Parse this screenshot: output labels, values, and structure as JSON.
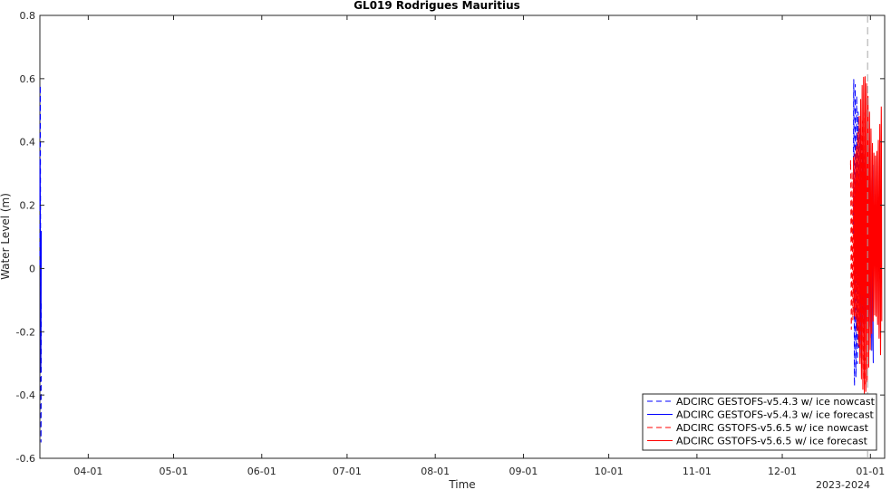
{
  "chart_data": {
    "type": "line",
    "title": "GL019 Rodrigues Mauritius",
    "xlabel": "Time",
    "ylabel": "Water Level (m)",
    "x_tick_labels": [
      "04-01",
      "05-01",
      "06-01",
      "07-01",
      "08-01",
      "09-01",
      "10-01",
      "11-01",
      "12-01",
      "01-01"
    ],
    "x_secondary_label": "2023-2024",
    "xlim": [
      "2023-03-15",
      "2024-01-06"
    ],
    "ylim": [
      -0.6,
      0.8
    ],
    "y_ticks": [
      -0.6,
      -0.4,
      -0.2,
      0,
      0.2,
      0.4,
      0.6,
      0.8
    ],
    "grid": false,
    "legend_position": "bottom-right",
    "series": [
      {
        "name": "ADCIRC GESTOFS-v5.4.3 w/ ice nowcast",
        "color": "#0000ff",
        "line_style": "dashed",
        "segments": [
          {
            "start": "2023-03-15",
            "end": "2023-03-15T12:00",
            "amp_min": -0.56,
            "amp_max": 0.58
          },
          {
            "start": "2023-12-26",
            "end": "2023-12-30",
            "amp_min": -0.38,
            "amp_max": 0.6
          }
        ]
      },
      {
        "name": "ADCIRC GESTOFS-v5.4.3 w/ ice forecast",
        "color": "#0000ff",
        "line_style": "solid",
        "segments": [
          {
            "start": "2023-03-15",
            "end": "2023-03-15T12:00",
            "amp_min": -0.4,
            "amp_max": 0.4
          },
          {
            "start": "2023-12-28",
            "end": "2024-01-02",
            "amp_min": -0.35,
            "amp_max": 0.4
          }
        ]
      },
      {
        "name": "ADCIRC GSTOFS-v5.6.5 w/ ice nowcast",
        "color": "#ff0000",
        "line_style": "dashed",
        "segments": [
          {
            "start": "2023-12-25",
            "end": "2023-12-30",
            "amp_min": -0.37,
            "amp_max": 0.5
          }
        ]
      },
      {
        "name": "ADCIRC GSTOFS-v5.6.5 w/ ice forecast",
        "color": "#ff0000",
        "line_style": "solid",
        "segments": [
          {
            "start": "2023-12-26",
            "end": "2024-01-05",
            "amp_min": -0.4,
            "amp_max": 0.61
          }
        ]
      }
    ],
    "annotations": [
      {
        "type": "vertical-dashed-line",
        "x": "2023-12-31",
        "color": "#a6a6a6"
      }
    ]
  }
}
